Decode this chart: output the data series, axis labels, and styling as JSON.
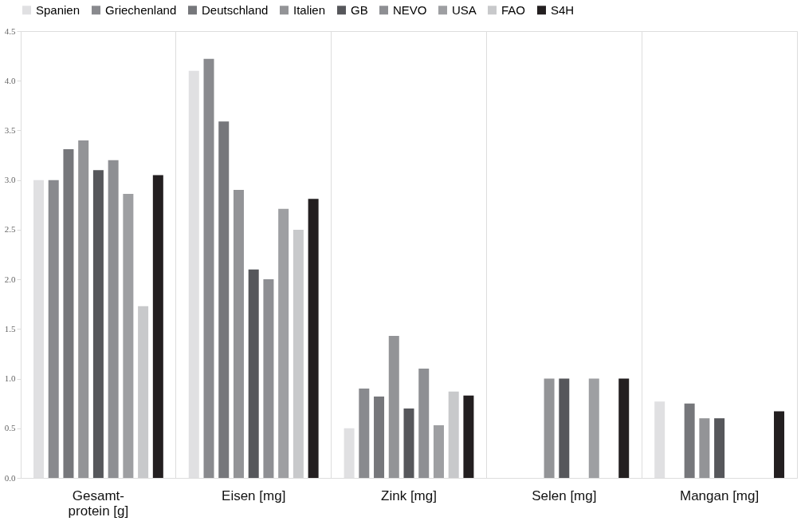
{
  "chart_data": {
    "type": "bar",
    "categories": [
      "Gesamt-\nprotein [g]",
      "Eisen [mg]",
      "Zink [mg]",
      "Selen [mg]",
      "Mangan [mg]"
    ],
    "series": [
      {
        "name": "Spanien",
        "color": "#e0e0e2",
        "values": [
          3.0,
          4.1,
          0.5,
          null,
          0.77
        ]
      },
      {
        "name": "Griechenland",
        "color": "#898a8e",
        "values": [
          3.0,
          4.22,
          0.9,
          null,
          null
        ]
      },
      {
        "name": "Deutschland",
        "color": "#76777b",
        "values": [
          3.31,
          3.59,
          0.82,
          null,
          0.75
        ]
      },
      {
        "name": "Italien",
        "color": "#939497",
        "values": [
          3.4,
          2.9,
          1.43,
          1.0,
          0.6
        ]
      },
      {
        "name": "GB",
        "color": "#56575b",
        "values": [
          3.1,
          2.1,
          0.7,
          1.0,
          0.6
        ]
      },
      {
        "name": "NEVO",
        "color": "#8e8f93",
        "values": [
          3.2,
          2.0,
          1.1,
          null,
          null
        ]
      },
      {
        "name": "USA",
        "color": "#9e9fa2",
        "values": [
          2.86,
          2.71,
          0.53,
          1.0,
          null
        ]
      },
      {
        "name": "FAO",
        "color": "#c8c9cb",
        "values": [
          1.73,
          2.5,
          0.87,
          null,
          null
        ]
      },
      {
        "name": "S4H",
        "color": "#231f20",
        "values": [
          3.05,
          2.81,
          0.83,
          1.0,
          0.67
        ]
      }
    ],
    "ylim": [
      0,
      4.5
    ],
    "yticks": [
      {
        "value": 0,
        "label": "0.0"
      },
      0.5,
      {
        "value": 1,
        "label": "1.0"
      },
      1.5,
      {
        "value": 2,
        "label": "2.0"
      },
      2.5,
      {
        "value": 3,
        "label": "3.0"
      },
      3.5,
      {
        "value": 4,
        "label": "4.0"
      },
      4.5
    ],
    "grid": "x",
    "legend": "top"
  }
}
